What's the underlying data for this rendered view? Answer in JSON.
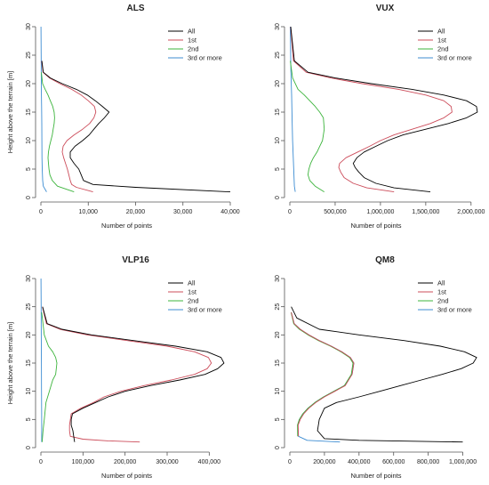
{
  "colors": {
    "All": "#000000",
    "1st": "#cc4c5a",
    "2nd": "#3cb43c",
    "3rd or more": "#3c8cd2"
  },
  "chart_data": [
    {
      "type": "line",
      "title": "ALS",
      "xlabel": "Number of points",
      "ylabel": "Height above the terrain [m]",
      "xlim": [
        0,
        40000
      ],
      "ylim": [
        0,
        30
      ],
      "xticks": [
        0,
        10000,
        20000,
        30000,
        40000
      ],
      "xtick_labels": [
        "0",
        "10,000",
        "20,000",
        "30,000",
        "40,000"
      ],
      "yticks": [
        0,
        5,
        10,
        15,
        20,
        25,
        30
      ],
      "grid": false,
      "legend": "top-right",
      "series": [
        {
          "name": "All",
          "x": [
            40000,
            20000,
            11000,
            9000,
            8500,
            8000,
            7000,
            6200,
            6200,
            7200,
            8800,
            10200,
            11200,
            12200,
            13400,
            14400,
            13000,
            11500,
            9800,
            7500,
            4500,
            2000,
            500,
            200
          ],
          "y": [
            1,
            1.8,
            2.3,
            3,
            4,
            5,
            6,
            7,
            8,
            9,
            10,
            11,
            12,
            13,
            14,
            15,
            16,
            17,
            18,
            19,
            20,
            21,
            22,
            24
          ]
        },
        {
          "name": "1st",
          "x": [
            11000,
            7500,
            6500,
            6200,
            5900,
            5600,
            5200,
            4800,
            4500,
            4700,
            5500,
            7000,
            8800,
            10300,
            11200,
            11600,
            11300,
            10000,
            8500,
            6500,
            4000,
            1800,
            450,
            150
          ],
          "y": [
            1,
            1.8,
            2.3,
            3,
            4,
            5,
            6,
            7,
            8,
            9,
            10,
            11,
            12,
            13,
            14,
            15,
            16,
            17,
            18,
            19,
            20,
            21,
            22,
            24
          ]
        },
        {
          "name": "2nd",
          "x": [
            7000,
            3500,
            2400,
            1900,
            1700,
            1600,
            1500,
            1600,
            1800,
            2100,
            2400,
            2600,
            2800,
            2900,
            2800,
            2500,
            2000,
            1500,
            900,
            350,
            100
          ],
          "y": [
            1,
            2,
            3,
            4,
            5,
            6,
            7,
            8,
            9,
            10,
            11,
            12,
            13,
            14,
            15,
            16,
            17,
            18,
            19,
            20,
            22
          ]
        },
        {
          "name": "3rd or more",
          "x": [
            1200,
            500,
            380,
            280,
            230,
            200,
            180,
            150,
            120,
            100,
            80,
            50,
            20
          ],
          "y": [
            1,
            2,
            3,
            5,
            7,
            10,
            13,
            16,
            18,
            20,
            22,
            25,
            30
          ]
        }
      ]
    },
    {
      "type": "line",
      "title": "VUX",
      "xlabel": "Number of points",
      "ylabel": "",
      "xlim": [
        0,
        2100000
      ],
      "ylim": [
        0,
        30
      ],
      "xticks": [
        0,
        500000,
        1000000,
        1500000,
        2000000
      ],
      "xtick_labels": [
        "0",
        "500,000",
        "1,000,000",
        "1,500,000",
        "2,000,000"
      ],
      "yticks": [
        0,
        5,
        10,
        15,
        20,
        25,
        30
      ],
      "grid": false,
      "legend": "top-right",
      "series": [
        {
          "name": "All",
          "x": [
            1550000,
            1150000,
            950000,
            820000,
            760000,
            720000,
            700000,
            740000,
            820000,
            950000,
            1080000,
            1250000,
            1500000,
            1750000,
            1950000,
            2070000,
            2060000,
            1950000,
            1700000,
            1350000,
            900000,
            500000,
            200000,
            50000,
            10000
          ],
          "y": [
            1,
            1.7,
            2.5,
            3.5,
            4.5,
            5.3,
            6,
            7,
            8,
            9,
            10,
            11,
            12,
            13,
            14,
            15,
            16,
            17,
            18,
            19,
            20,
            21,
            22,
            24,
            30
          ]
        },
        {
          "name": "1st",
          "x": [
            1150000,
            850000,
            700000,
            600000,
            560000,
            540000,
            550000,
            620000,
            750000,
            880000,
            1000000,
            1150000,
            1350000,
            1550000,
            1700000,
            1790000,
            1780000,
            1700000,
            1500000,
            1200000,
            800000,
            450000,
            180000,
            40000,
            8000
          ],
          "y": [
            1,
            1.7,
            2.5,
            3.5,
            4.5,
            5.3,
            6,
            7,
            8,
            9,
            10,
            11,
            12,
            13,
            14,
            15,
            16,
            17,
            18,
            19,
            20,
            21,
            22,
            24,
            30
          ]
        },
        {
          "name": "2nd",
          "x": [
            380000,
            280000,
            220000,
            200000,
            210000,
            230000,
            260000,
            300000,
            330000,
            360000,
            380000,
            370000,
            330000,
            280000,
            220000,
            160000,
            90000,
            30000,
            5000
          ],
          "y": [
            1,
            2,
            3,
            4,
            5,
            6,
            7,
            8,
            9,
            10,
            12,
            14,
            15,
            16,
            17,
            18,
            19,
            21,
            24
          ]
        },
        {
          "name": "3rd or more",
          "x": [
            60000,
            50000,
            45000,
            40000,
            35000,
            30000,
            25000,
            20000,
            12000,
            5000
          ],
          "y": [
            1,
            2,
            4,
            6,
            8,
            10,
            14,
            18,
            22,
            30
          ]
        }
      ]
    },
    {
      "type": "line",
      "title": "VLP16",
      "xlabel": "Number of points",
      "ylabel": "Height above the terrain [m]",
      "xlim": [
        0,
        450000
      ],
      "ylim": [
        0,
        30
      ],
      "xticks": [
        0,
        100000,
        200000,
        300000,
        400000
      ],
      "xtick_labels": [
        "0",
        "100,000",
        "200,000",
        "300,000",
        "400,000"
      ],
      "yticks": [
        0,
        5,
        10,
        15,
        20,
        25,
        30
      ],
      "grid": false,
      "legend": "top-right",
      "series": [
        {
          "name": "All",
          "x": [
            80000,
            78000,
            76000,
            72000,
            72000,
            75000,
            100000,
            130000,
            160000,
            200000,
            260000,
            330000,
            390000,
            420000,
            435000,
            428000,
            395000,
            320000,
            220000,
            120000,
            50000,
            15000,
            4000
          ],
          "y": [
            1,
            2,
            3,
            4,
            5,
            6,
            7,
            8,
            9,
            10,
            11,
            12,
            13,
            14,
            15,
            16,
            17,
            18,
            19,
            20,
            21,
            22,
            25
          ]
        },
        {
          "name": "1st",
          "x": [
            235000,
            160000,
            100000,
            70000,
            68000,
            68000,
            72000,
            95000,
            125000,
            150000,
            190000,
            245000,
            310000,
            365000,
            395000,
            405000,
            398000,
            365000,
            300000,
            205000,
            110000,
            45000,
            13000,
            3500
          ],
          "y": [
            1,
            1.2,
            1.5,
            2,
            3,
            4,
            6,
            7,
            8,
            9,
            10,
            11,
            12,
            13,
            14,
            15,
            16,
            17,
            18,
            19,
            20,
            21,
            22,
            25
          ]
        },
        {
          "name": "2nd",
          "x": [
            3000,
            5000,
            8000,
            12000,
            20000,
            28000,
            35000,
            38000,
            35000,
            28000,
            18000,
            8000,
            2000
          ],
          "y": [
            1,
            3,
            5,
            8,
            10,
            12,
            13,
            15,
            16,
            17,
            18,
            20,
            24
          ]
        },
        {
          "name": "3rd or more",
          "x": [
            2000,
            1800,
            1500,
            1200,
            900,
            600,
            300
          ],
          "y": [
            1,
            5,
            10,
            15,
            20,
            25,
            30
          ]
        }
      ]
    },
    {
      "type": "line",
      "title": "QM8",
      "xlabel": "Number of points",
      "ylabel": "",
      "xlim": [
        0,
        1100000
      ],
      "ylim": [
        0,
        30
      ],
      "xticks": [
        0,
        200000,
        400000,
        600000,
        800000,
        1000000
      ],
      "xtick_labels": [
        "0",
        "200,000",
        "400,000",
        "600,000",
        "800,000",
        "1,000,000"
      ],
      "yticks": [
        0,
        5,
        10,
        15,
        20,
        25,
        30
      ],
      "grid": false,
      "legend": "top-right",
      "series": [
        {
          "name": "All",
          "x": [
            1000000,
            400000,
            200000,
            160000,
            165000,
            170000,
            200000,
            270000,
            400000,
            520000,
            640000,
            760000,
            880000,
            990000,
            1060000,
            1080000,
            1010000,
            870000,
            660000,
            400000,
            170000,
            40000,
            8000
          ],
          "y": [
            1,
            1.3,
            1.6,
            3,
            4,
            5,
            7,
            8,
            9,
            10,
            11,
            12,
            13,
            14,
            15,
            16,
            17,
            18,
            19,
            20,
            21,
            23,
            25
          ]
        },
        {
          "name": "1st",
          "x": [
            50000,
            48000,
            60000,
            80000,
            110000,
            150000,
            200000,
            260000,
            320000,
            360000,
            370000,
            350000,
            300000,
            240000,
            170000,
            110000,
            60000,
            25000,
            8000
          ],
          "y": [
            2,
            4,
            5,
            6,
            7,
            8,
            9,
            10,
            11,
            13,
            15,
            16,
            17,
            18,
            19,
            20,
            21,
            22,
            24
          ]
        },
        {
          "name": "2nd",
          "x": [
            45000,
            44000,
            55000,
            75000,
            105000,
            145000,
            195000,
            255000,
            315000,
            355000,
            365000,
            345000,
            295000,
            235000,
            165000,
            105000,
            55000,
            22000,
            7000
          ],
          "y": [
            2,
            4,
            5,
            6,
            7,
            8,
            9,
            10,
            11,
            13,
            15,
            16,
            17,
            18,
            19,
            20,
            21,
            22,
            24
          ]
        },
        {
          "name": "3rd or more",
          "x": [
            290000,
            100000,
            50000,
            45000,
            55000,
            75000,
            105000,
            145000,
            195000,
            255000,
            315000,
            360000,
            370000,
            350000,
            300000,
            240000,
            170000,
            110000,
            60000,
            25000,
            8000
          ],
          "y": [
            1,
            1.3,
            2,
            4,
            5,
            6,
            7,
            8,
            9,
            10,
            11,
            13,
            15,
            16,
            17,
            18,
            19,
            20,
            21,
            22,
            24
          ]
        }
      ]
    }
  ]
}
